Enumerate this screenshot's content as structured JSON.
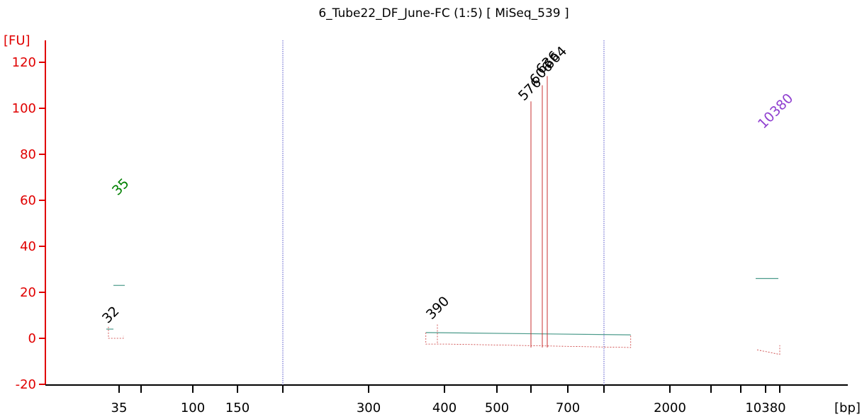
{
  "chart_data": {
    "type": "line",
    "title": "6_Tube22_DF_June-FC (1:5)  [ MiSeq_539 ]",
    "y_unit_label": "[FU]",
    "x_unit_label": "[bp]",
    "ylim": [
      -20,
      130
    ],
    "y_ticks": [
      -20,
      0,
      20,
      40,
      60,
      80,
      100,
      120
    ],
    "x_tick_labels": [
      "35",
      "100",
      "150",
      "300",
      "400",
      "500",
      "700",
      "2000",
      "10380"
    ],
    "grid": false,
    "colors": {
      "axis": "#e00000",
      "trace": "#c83030",
      "marker_line": "#5050c8",
      "baseline": "#4a9a8a",
      "lower_marker": "#008000",
      "upper_marker": "#9040d0"
    },
    "peaks": [
      {
        "label": "35",
        "size_bp": 35,
        "height_fu": 60,
        "role": "lower marker"
      },
      {
        "label": "32",
        "size_bp": 32,
        "height_fu": 5
      },
      {
        "label": "390",
        "size_bp": 390,
        "height_fu": 7
      },
      {
        "label": "576",
        "size_bp": 576,
        "height_fu": 103
      },
      {
        "label": "606",
        "size_bp": 606,
        "height_fu": 110
      },
      {
        "label": "636",
        "size_bp": 636,
        "height_fu": 114
      },
      {
        "label": "664",
        "size_bp": 664,
        "height_fu": 116
      },
      {
        "label": "10380",
        "size_bp": 10380,
        "height_fu": 89,
        "role": "upper marker"
      }
    ],
    "smear": {
      "apex_size_bp": 664,
      "apex_fu": 117,
      "height_at_390_fu": 6,
      "height_at_2000_fu": -2
    }
  }
}
